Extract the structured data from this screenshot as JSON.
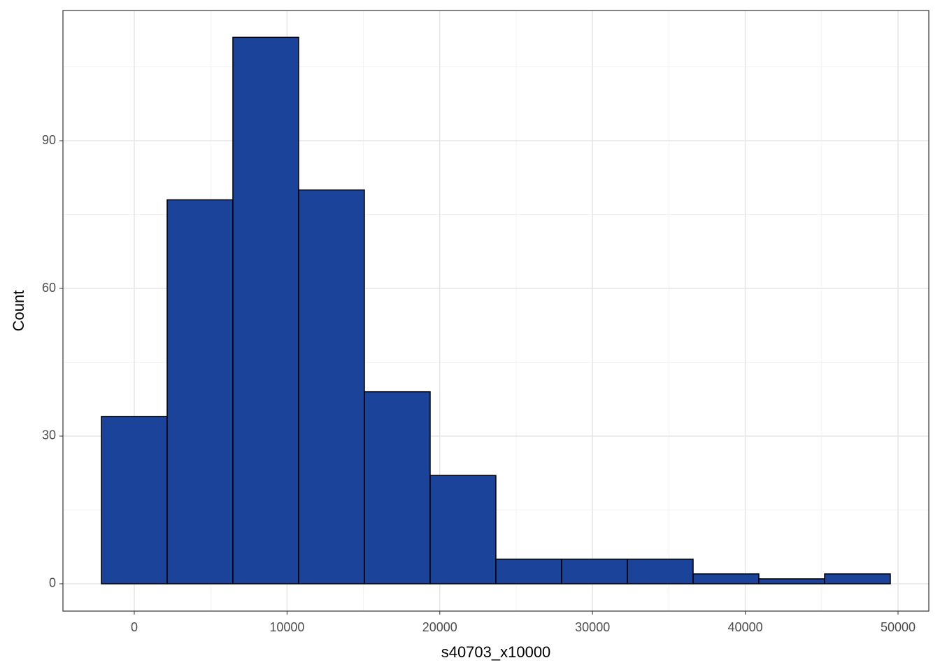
{
  "chart_data": {
    "type": "histogram",
    "x_label": "s40703_x10000",
    "y_label": "Count",
    "bins": [
      -2152,
      2152,
      6456,
      10760,
      15064,
      19368,
      23672,
      27976,
      32280,
      36584,
      40888,
      45192,
      49496
    ],
    "values": [
      34,
      78,
      111,
      80,
      39,
      22,
      5,
      5,
      5,
      2,
      1,
      2
    ],
    "color": "#1a4399",
    "xlim": [
      -4670,
      52015
    ],
    "ylim": [
      -5.55,
      116.45
    ],
    "xticks": [
      0,
      10000,
      20000,
      30000,
      40000,
      50000
    ],
    "yticks": [
      0,
      30,
      60,
      90
    ],
    "grid": true
  }
}
